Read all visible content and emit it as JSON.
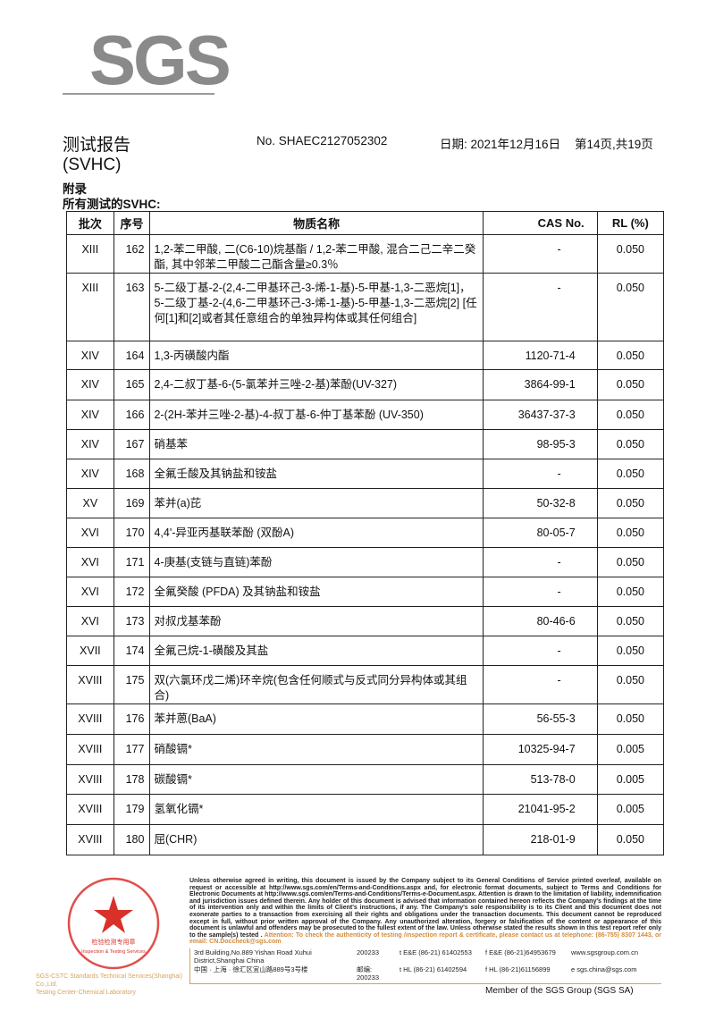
{
  "logo": "SGS",
  "header": {
    "title": "测试报告",
    "report_no": "No. SHAEC2127052302",
    "date": "日期: 2021年12月16日",
    "page": "第14页,共19页",
    "subtitle": "(SVHC)",
    "appendix": "附录",
    "all_tested": "所有测试的SVHC:"
  },
  "table": {
    "headers": [
      "批次",
      "序号",
      "物质名称",
      "CAS No.",
      "RL (%)"
    ],
    "rows": [
      {
        "batch": "XIII",
        "no": "162",
        "name": "1,2-苯二甲酸, 二(C6-10)烷基酯 / 1,2-苯二甲酸, 混合二己二辛二癸酯, 其中邻苯二甲酸二己酯含量≥0.3％",
        "cas": "-",
        "rl": "0.050"
      },
      {
        "batch": "XIII",
        "no": "163",
        "name": "5-二级丁基-2-(2,4-二甲基环己-3-烯-1-基)-5-甲基-1,3-二恶烷[1]，5-二级丁基-2-(4,6-二甲基环己-3-烯-1-基)-5-甲基-1,3-二恶烷[2] [任何[1]和[2]或者其任意组合的单独异构体或其任何组合]",
        "cas": "-",
        "rl": "0.050"
      },
      {
        "batch": "XIV",
        "no": "164",
        "name": "1,3-丙磺酸内酯",
        "cas": "1120-71-4",
        "rl": "0.050"
      },
      {
        "batch": "XIV",
        "no": "165",
        "name": "2,4-二叔丁基-6-(5-氯苯并三唑-2-基)苯酚(UV-327)",
        "cas": "3864-99-1",
        "rl": "0.050"
      },
      {
        "batch": "XIV",
        "no": "166",
        "name": "2-(2H-苯并三唑-2-基)-4-叔丁基-6-仲丁基苯酚 (UV-350)",
        "cas": "36437-37-3",
        "rl": "0.050"
      },
      {
        "batch": "XIV",
        "no": "167",
        "name": "硝基苯",
        "cas": "98-95-3",
        "rl": "0.050"
      },
      {
        "batch": "XIV",
        "no": "168",
        "name": "全氟壬酸及其钠盐和铵盐",
        "cas": "-",
        "rl": "0.050"
      },
      {
        "batch": "XV",
        "no": "169",
        "name": "苯并(a)芘",
        "cas": "50-32-8",
        "rl": "0.050"
      },
      {
        "batch": "XVI",
        "no": "170",
        "name": "4,4'-异亚丙基联苯酚 (双酚A)",
        "cas": "80-05-7",
        "rl": "0.050"
      },
      {
        "batch": "XVI",
        "no": "171",
        "name": "4-庚基(支链与直链)苯酚",
        "cas": "-",
        "rl": "0.050"
      },
      {
        "batch": "XVI",
        "no": "172",
        "name": "全氟癸酸 (PFDA) 及其钠盐和铵盐",
        "cas": "-",
        "rl": "0.050"
      },
      {
        "batch": "XVI",
        "no": "173",
        "name": "对叔戊基苯酚",
        "cas": "80-46-6",
        "rl": "0.050"
      },
      {
        "batch": "XVII",
        "no": "174",
        "name": "全氟己烷-1-磺酸及其盐",
        "cas": "-",
        "rl": "0.050"
      },
      {
        "batch": "XVIII",
        "no": "175",
        "name": "双(六氯环戊二烯)环辛烷(包含任何顺式与反式同分异构体或其组合)",
        "cas": "-",
        "rl": "0.050"
      },
      {
        "batch": "XVIII",
        "no": "176",
        "name": "苯并蒽(BaA)",
        "cas": "56-55-3",
        "rl": "0.050"
      },
      {
        "batch": "XVIII",
        "no": "177",
        "name": "硝酸镉*",
        "cas": "10325-94-7",
        "rl": "0.005"
      },
      {
        "batch": "XVIII",
        "no": "178",
        "name": "碳酸镉*",
        "cas": "513-78-0",
        "rl": "0.005"
      },
      {
        "batch": "XVIII",
        "no": "179",
        "name": "氢氧化镉*",
        "cas": "21041-95-2",
        "rl": "0.005"
      },
      {
        "batch": "XVIII",
        "no": "180",
        "name": "屈(CHR)",
        "cas": "218-01-9",
        "rl": "0.050"
      }
    ]
  },
  "footer": {
    "stamp_text": "通标标准技术服务(上海)有限公司 检验检测专用章 Inspection & Testing Services",
    "stamp_caption": [
      "SGS-CSTC Standards Technical Services(Shanghai) Co.,Ltd.",
      "Testing Center-Chemical Laboratory"
    ],
    "terms": "Unless otherwise agreed in writing, this document is issued by the Company subject to its General Conditions of Service printed overleaf, available on request or accessible at http://www.sgs.com/en/Terms-and-Conditions.aspx and, for electronic format documents, subject to Terms and Conditions for Electronic Documents at http://www.sgs.com/en/Terms-and-Conditions/Terms-e-Document.aspx. Attention is drawn to the limitation of liability, indemnification and jurisdiction issues defined therein. Any holder of this document is advised that information contained hereon reflects the Company's findings at the time of its intervention only and within the limits of Client's instructions, if any. The Company's sole responsibility is to its Client and this document does not exonerate parties to a transaction from exercising all their rights and obligations under the transaction documents. This document cannot be reproduced except in full, without prior written approval of the Company. Any unauthorized alteration, forgery or falsification of the content or appearance of this document is unlawful and offenders may be prosecuted to the fullest extent of the law. Unless otherwise stated the results shown in this test report refer only to the sample(s) tested .",
    "attention": "Attention: To check the authenticity of testing /inspection report & certificate, please contact us at telephone: (86-755) 8307 1443, or email: CN.Doccheck@sgs.com",
    "addr_en": "3rd Building,No.889 Yishan Road Xuhui District,Shanghai China",
    "zip1": "200233",
    "tel1": "t E&E (86-21) 61402553",
    "fax1": "f E&E (86-21)64953679",
    "web": "www.sgsgroup.com.cn",
    "addr_cn": "中国 · 上海 · 徐汇区宜山路889号3号楼",
    "zip2": "邮编: 200233",
    "tel2": "t HL (86-21) 61402594",
    "fax2": "f HL (86-21)61156899",
    "email": "e sgs.china@sgs.com",
    "member": "Member of the SGS Group (SGS SA)"
  },
  "colors": {
    "logo": "#8a8a8a",
    "stamp": "#d9302a",
    "accent": "#d38a3a"
  }
}
